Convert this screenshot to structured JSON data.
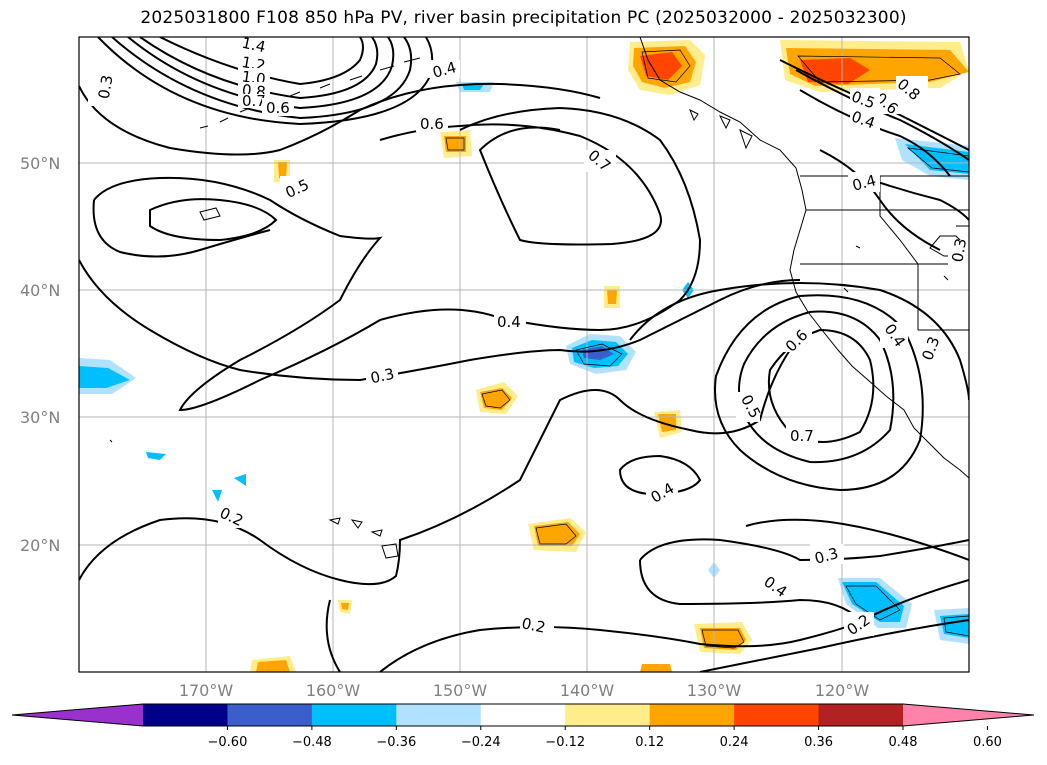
{
  "title": "2025031800 F108 850 hPa PV, river basin precipitation PC (2025032000 - 2025032300)",
  "lon_labels": [
    "170°W",
    "160°W",
    "150°W",
    "140°W",
    "130°W",
    "120°W"
  ],
  "lat_labels": [
    "50°N",
    "40°N",
    "30°N",
    "20°N"
  ],
  "colorbar": {
    "colors": [
      "#9932cc",
      "#00008b",
      "#3a5fcd",
      "#00bfff",
      "#b0e2ff",
      "#ffffff",
      "#ffec8b",
      "#ffa500",
      "#ff4500",
      "#b22222",
      "#ff82ab"
    ],
    "tick_labels": [
      "−0.60",
      "−0.48",
      "−0.36",
      "−0.24",
      "−0.12",
      "0.12",
      "0.24",
      "0.36",
      "0.48",
      "0.60"
    ]
  },
  "contour_labels": [
    "1.4",
    "1.2",
    "1.0",
    "0.8",
    "0.7",
    "0.6",
    "0.3",
    "0.4",
    "0.6",
    "0.5",
    "0.7",
    "0.4",
    "0.3",
    "0.2",
    "0.4",
    "0.5",
    "0.7",
    "0.6",
    "0.4",
    "0.3",
    "0.3",
    "0.4",
    "0.2",
    "0.2",
    "0.8",
    "0.6",
    "0.5",
    "0.4",
    "0.4",
    "0.3"
  ]
}
